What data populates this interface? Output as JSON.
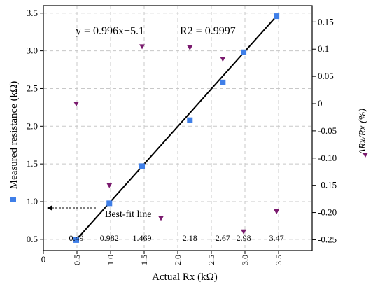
{
  "chart_data": {
    "type": "scatter",
    "xlabel": "Actual Rx (kΩ)",
    "ylabel_left": "Measured resistance (kΩ)",
    "ylabel_right": "ΔRx/Rx (%)",
    "xlim": [
      0,
      4.0
    ],
    "ylim_left": [
      0.35,
      3.6
    ],
    "ylim_right": [
      -0.27,
      0.18
    ],
    "x_ticks": [
      0,
      0.5,
      1.0,
      1.5,
      2.0,
      2.5,
      3.0,
      3.5
    ],
    "x_tick_labels": [
      "0",
      "0.5",
      "1.0",
      "1.5",
      "2.0",
      "2.5",
      "3.0",
      "3.5"
    ],
    "y_left_ticks": [
      0.5,
      1.0,
      1.5,
      2.0,
      2.5,
      3.0,
      3.5
    ],
    "y_left_tick_labels": [
      "0.5",
      "1.0",
      "1.5",
      "2.0",
      "2.5",
      "3.0",
      "3.5"
    ],
    "y_right_ticks": [
      0.15,
      0.1,
      0.05,
      0,
      -0.05,
      -0.1,
      -0.15,
      -0.2,
      -0.25
    ],
    "y_right_tick_labels": [
      "0.15",
      "0.1",
      "0.05",
      "0",
      "-0.05",
      "-0.10",
      "-0.15",
      "-0.20",
      "-0.25"
    ],
    "grid": true,
    "series": [
      {
        "axis": "left",
        "marker": "square",
        "color": "#3f7fe8",
        "x": [
          0.49,
          0.982,
          1.469,
          2.18,
          2.67,
          2.98,
          3.47
        ],
        "y": [
          0.49,
          0.978,
          1.47,
          2.08,
          2.58,
          2.98,
          3.46
        ]
      },
      {
        "axis": "right",
        "marker": "triangle-down",
        "color": "#7a1a6e",
        "x": [
          0.49,
          0.982,
          1.469,
          1.75,
          2.18,
          2.67,
          2.98,
          3.47
        ],
        "y": [
          0.0,
          -0.15,
          0.105,
          -0.21,
          0.103,
          0.082,
          -0.235,
          -0.198
        ]
      }
    ],
    "fit_line": {
      "slope": 0.996,
      "intercept": 0.0051,
      "x_range": [
        0.49,
        3.47
      ]
    },
    "data_labels": [
      {
        "x": 0.49,
        "text": "0.49"
      },
      {
        "x": 0.982,
        "text": "0.982"
      },
      {
        "x": 1.469,
        "text": "1.469"
      },
      {
        "x": 2.18,
        "text": "2.18"
      },
      {
        "x": 2.67,
        "text": "2.67"
      },
      {
        "x": 2.98,
        "text": "2.98"
      },
      {
        "x": 3.47,
        "text": "3.47"
      }
    ],
    "annotations": {
      "equation": "y = 0.996x+5.1",
      "r_squared": "R2 = 0.9997",
      "best_fit_label": "Best-fit line"
    },
    "legend": {
      "left_marker_color": "#3f7fe8",
      "right_marker_color": "#7a1a6e"
    }
  }
}
